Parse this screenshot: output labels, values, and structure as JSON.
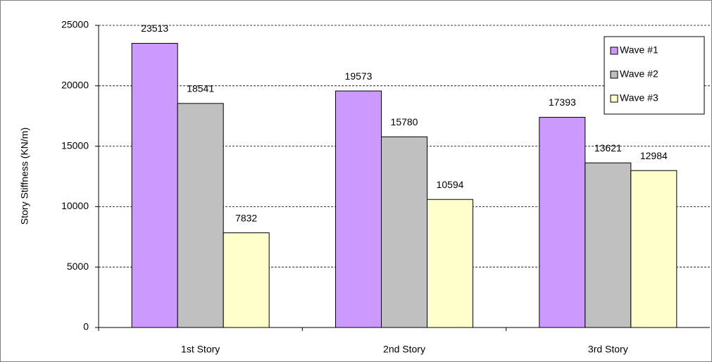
{
  "chart_data": {
    "type": "bar",
    "categories": [
      "1st Story",
      "2nd Story",
      "3rd Story"
    ],
    "series": [
      {
        "name": "Wave #1",
        "color": "#cc99ff",
        "values": [
          23513,
          19573,
          17393
        ]
      },
      {
        "name": "Wave #2",
        "color": "#c0c0c0",
        "values": [
          18541,
          15780,
          13621
        ]
      },
      {
        "name": "Wave #3",
        "color": "#ffffcc",
        "values": [
          7832,
          10594,
          12984
        ]
      }
    ],
    "y_label": "Story Stiffness (KN/m)",
    "ylim": [
      0,
      25000
    ],
    "yticks": [
      0,
      5000,
      10000,
      15000,
      20000,
      25000
    ],
    "grid": true,
    "legend": "top-right"
  }
}
